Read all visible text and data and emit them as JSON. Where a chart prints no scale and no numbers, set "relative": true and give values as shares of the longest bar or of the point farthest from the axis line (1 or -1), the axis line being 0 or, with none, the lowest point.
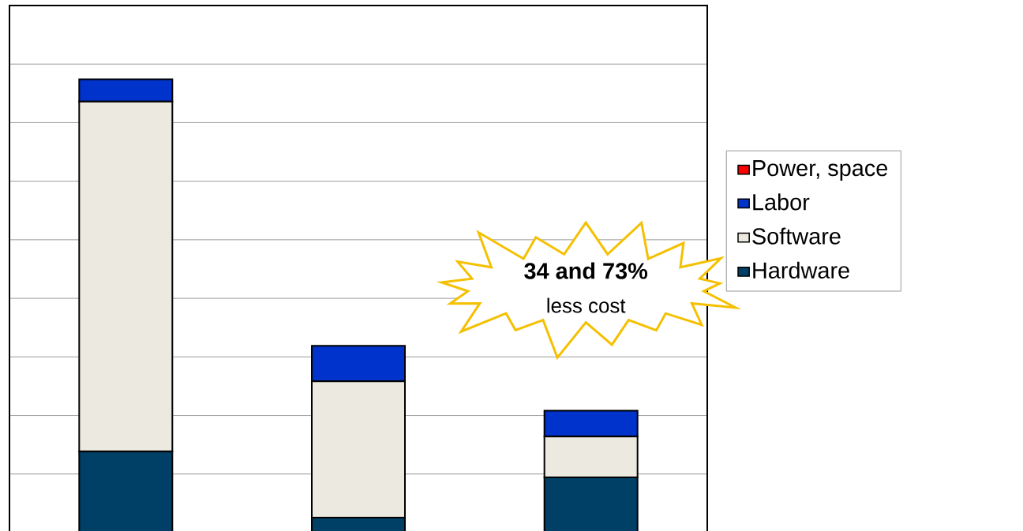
{
  "chart_data": {
    "type": "bar",
    "stacked": true,
    "relative": true,
    "categories": [
      null,
      null,
      null
    ],
    "series": [
      {
        "name": "Hardware",
        "color": "#003f66",
        "values": [
          0.179,
          0.033,
          0.122
        ]
      },
      {
        "name": "Software",
        "color": "#eceae0",
        "values": [
          0.772,
          0.301,
          0.09
        ]
      },
      {
        "name": "Labor",
        "color": "#0033cc",
        "values": [
          0.049,
          0.078,
          0.057
        ]
      },
      {
        "name": "Power, space",
        "color": "#ff0000",
        "values": [
          0,
          0,
          0
        ]
      }
    ],
    "grid": "y",
    "legend": "right",
    "annotations": [
      "34 and 73%",
      "less cost"
    ]
  }
}
